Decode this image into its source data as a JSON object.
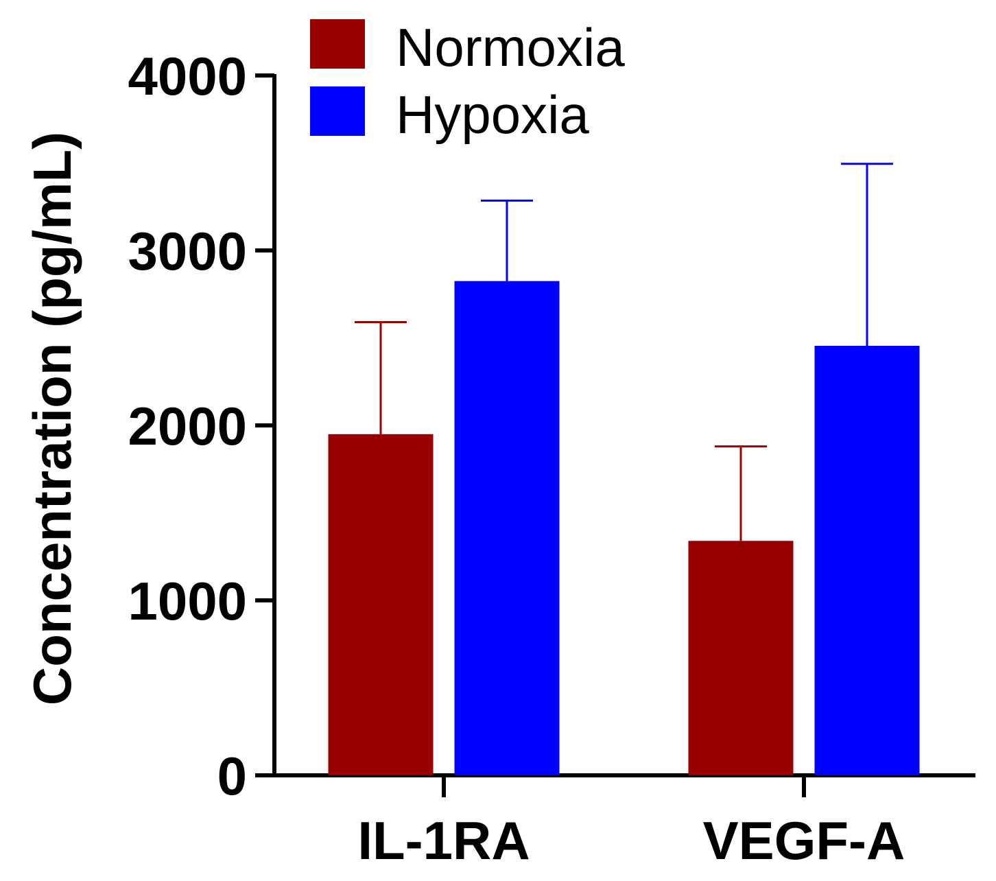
{
  "chart_data": {
    "type": "bar",
    "title": "",
    "xlabel": "",
    "ylabel": "Concentration (pg/mL)",
    "ylim": [
      0,
      4000
    ],
    "yticks": [
      0,
      1000,
      2000,
      3000,
      4000
    ],
    "categories": [
      "IL-1RA",
      "VEGF-A"
    ],
    "series": [
      {
        "name": "Normoxia",
        "color": "#990000",
        "values": [
          1950,
          1340
        ],
        "error": [
          640,
          540
        ]
      },
      {
        "name": "Hypoxia",
        "color": "#0000ff",
        "values": [
          2825,
          2455
        ],
        "error": [
          460,
          1040
        ]
      }
    ],
    "legend_position": "top-center",
    "grid": false,
    "error_bars": "upper"
  }
}
